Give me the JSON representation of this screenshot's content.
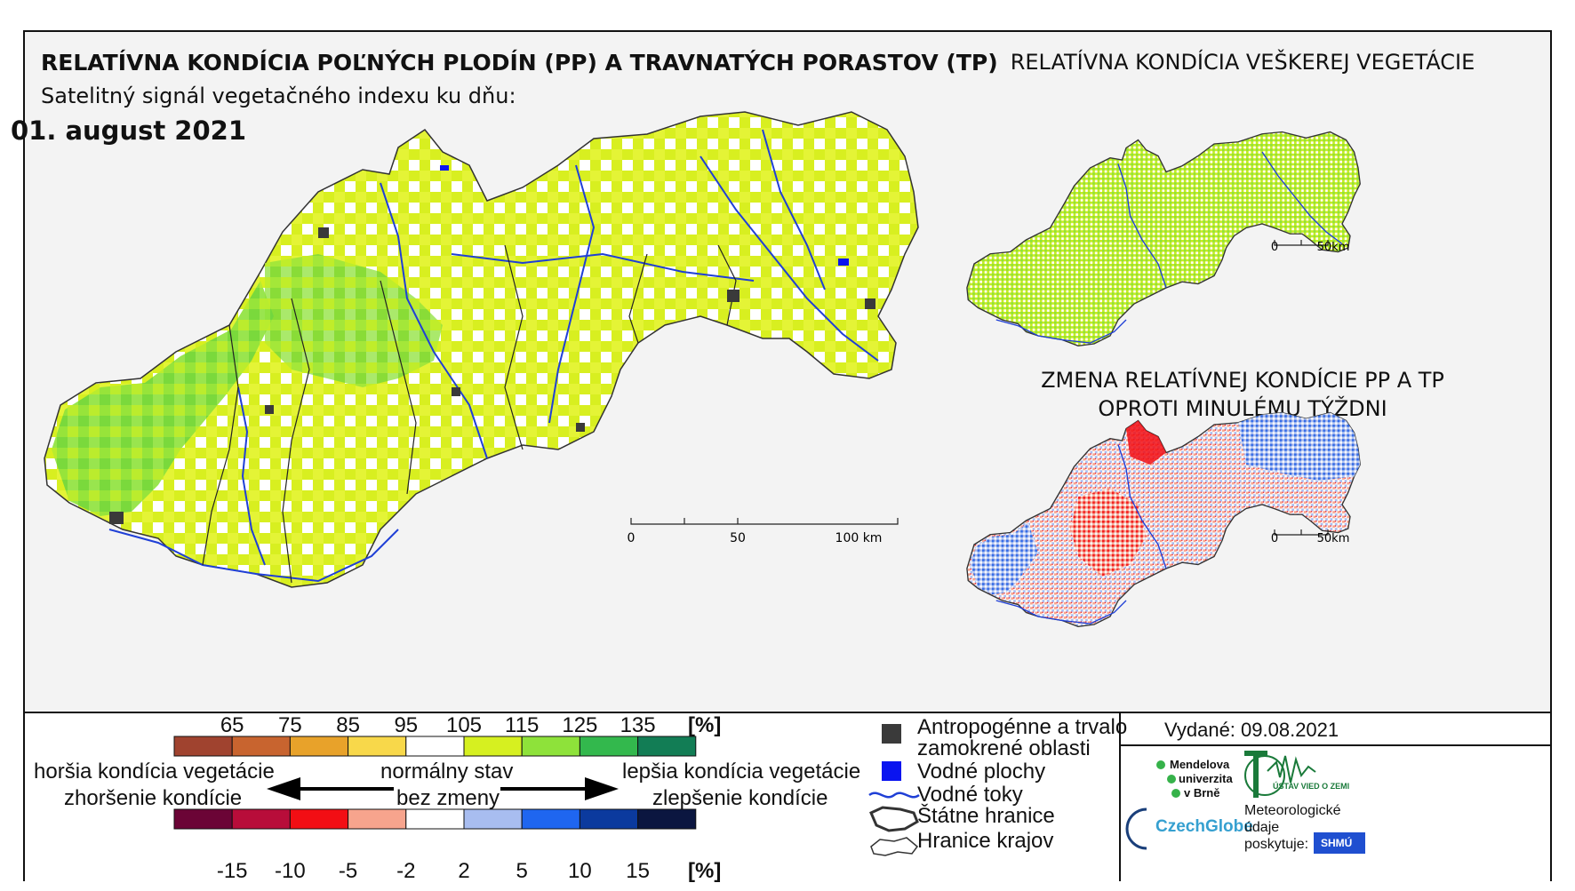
{
  "titles": {
    "main": "RELATÍVNA KONDÍCIA POĽNÝCH PLODÍN (PP) A TRAVNATÝCH PORASTOV (TP)",
    "subtitle": "Satelitný signál vegetačného indexu ku dňu:",
    "date": "01. august 2021",
    "veg": "RELATÍVNA KONDÍCIA VEŠKEREJ VEGETÁCIE",
    "change_line1": "ZMENA RELATÍVNEJ KONDÍCIE PP A TP",
    "change_line2": "OPROTI MINULÉMU TÝŽDNI"
  },
  "scalebars": {
    "main": [
      "0",
      "50",
      "100 km"
    ],
    "small_top": [
      "0",
      "50km"
    ],
    "small_bottom": [
      "0",
      "50km"
    ]
  },
  "legend": {
    "condition_ticks": [
      "65",
      "75",
      "85",
      "95",
      "105",
      "115",
      "125",
      "135"
    ],
    "condition_colors": [
      "#a0432f",
      "#c8642f",
      "#e8a22a",
      "#f8d84a",
      "#ffffff",
      "#d6f020",
      "#8ee23a",
      "#33b84d",
      "#127d55"
    ],
    "change_ticks": [
      "-15",
      "-10",
      "-5",
      "-2",
      "2",
      "5",
      "10",
      "15"
    ],
    "change_colors": [
      "#6b0436",
      "#b80d3a",
      "#f20e14",
      "#f7a48d",
      "#ffffff",
      "#a8bdf0",
      "#1f66f0",
      "#0b3a9e",
      "#0b1640"
    ],
    "unit": "[%]",
    "worse_line1": "horšia kondícia vegetácie",
    "worse_line2": "zhoršenie kondície",
    "normal_line1": "normálny stav",
    "normal_line2": "bez zmeny",
    "better_line1": "lepšia kondícia vegetácie",
    "better_line2": "zlepšenie kondície"
  },
  "symbols": {
    "anthropogenic_line1": "Antropogénne a trvalo",
    "anthropogenic_line2": "zamokrené oblasti",
    "water_bodies": "Vodné plochy",
    "water_courses": "Vodné toky",
    "state_border": "Štátne hranice",
    "region_border": "Hranice krajov",
    "colors": {
      "anthropogenic": "#3a3a3a",
      "water": "#0a14f0",
      "river": "#1f3fd6"
    }
  },
  "issued": "Vydané: 09.08.2021",
  "logos": {
    "mendel_line1": "Mendelova",
    "mendel_line2": "univerzita",
    "mendel_line3": "v Brně",
    "ustav": "ÚSTAV VIED O ZEMI",
    "czechglobe": "CzechGlobe",
    "meteo_line1": "Meteorologické",
    "meteo_line2": "údaje",
    "meteo_line3": "poskytuje:",
    "shmu": "SHMÚ"
  }
}
